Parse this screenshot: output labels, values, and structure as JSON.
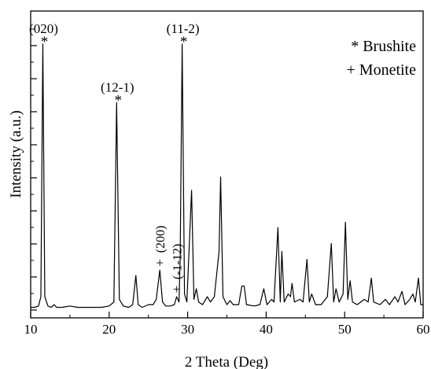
{
  "chart_data": {
    "type": "line",
    "xlabel": "2 Theta (Deg)",
    "ylabel": "Intensity (a.u.)",
    "xlim": [
      10,
      60
    ],
    "xticks": [
      "10",
      "20",
      "30",
      "40",
      "50",
      "60"
    ],
    "legend": {
      "placement": "top-right",
      "entries": [
        {
          "marker": "*",
          "label": "* Brushite"
        },
        {
          "marker": "+",
          "label": "+ Monetite"
        }
      ]
    },
    "series": [
      {
        "points": [
          [
            10.0,
            0.01
          ],
          [
            10.5,
            0.01
          ],
          [
            11.0,
            0.015
          ],
          [
            11.3,
            0.05
          ],
          [
            11.55,
            1.0
          ],
          [
            11.8,
            0.05
          ],
          [
            12.2,
            0.015
          ],
          [
            12.6,
            0.01
          ],
          [
            13.0,
            0.02
          ],
          [
            13.3,
            0.01
          ],
          [
            14.0,
            0.01
          ],
          [
            15.0,
            0.015
          ],
          [
            16.0,
            0.01
          ],
          [
            17.0,
            0.01
          ],
          [
            18.0,
            0.01
          ],
          [
            19.0,
            0.01
          ],
          [
            20.0,
            0.015
          ],
          [
            20.6,
            0.03
          ],
          [
            20.95,
            0.78
          ],
          [
            21.3,
            0.04
          ],
          [
            21.8,
            0.015
          ],
          [
            22.5,
            0.01
          ],
          [
            23.0,
            0.02
          ],
          [
            23.4,
            0.13
          ],
          [
            23.7,
            0.02
          ],
          [
            24.2,
            0.01
          ],
          [
            25.0,
            0.02
          ],
          [
            25.6,
            0.02
          ],
          [
            26.0,
            0.04
          ],
          [
            26.45,
            0.15
          ],
          [
            26.8,
            0.03
          ],
          [
            27.2,
            0.015
          ],
          [
            27.8,
            0.015
          ],
          [
            28.3,
            0.02
          ],
          [
            28.6,
            0.05
          ],
          [
            28.9,
            0.03
          ],
          [
            29.05,
            0.2
          ],
          [
            29.3,
            1.0
          ],
          [
            29.6,
            0.06
          ],
          [
            29.9,
            0.03
          ],
          [
            30.5,
            0.45
          ],
          [
            30.8,
            0.04
          ],
          [
            31.1,
            0.08
          ],
          [
            31.4,
            0.03
          ],
          [
            31.9,
            0.02
          ],
          [
            32.5,
            0.05
          ],
          [
            32.9,
            0.03
          ],
          [
            33.4,
            0.05
          ],
          [
            34.0,
            0.22
          ],
          [
            34.2,
            0.5
          ],
          [
            34.5,
            0.05
          ],
          [
            35.0,
            0.02
          ],
          [
            35.4,
            0.035
          ],
          [
            35.8,
            0.02
          ],
          [
            36.5,
            0.02
          ],
          [
            36.9,
            0.09
          ],
          [
            37.2,
            0.09
          ],
          [
            37.5,
            0.02
          ],
          [
            38.5,
            0.015
          ],
          [
            39.2,
            0.02
          ],
          [
            39.7,
            0.08
          ],
          [
            40.1,
            0.02
          ],
          [
            40.7,
            0.04
          ],
          [
            41.0,
            0.03
          ],
          [
            41.5,
            0.31
          ],
          [
            41.8,
            0.03
          ],
          [
            42.0,
            0.22
          ],
          [
            42.3,
            0.03
          ],
          [
            42.8,
            0.06
          ],
          [
            43.1,
            0.05
          ],
          [
            43.3,
            0.1
          ],
          [
            43.6,
            0.03
          ],
          [
            44.3,
            0.04
          ],
          [
            44.7,
            0.03
          ],
          [
            45.2,
            0.19
          ],
          [
            45.5,
            0.03
          ],
          [
            45.8,
            0.06
          ],
          [
            46.3,
            0.02
          ],
          [
            47.0,
            0.02
          ],
          [
            47.8,
            0.05
          ],
          [
            48.3,
            0.25
          ],
          [
            48.6,
            0.03
          ],
          [
            48.9,
            0.08
          ],
          [
            49.3,
            0.03
          ],
          [
            49.8,
            0.06
          ],
          [
            50.1,
            0.33
          ],
          [
            50.4,
            0.04
          ],
          [
            50.7,
            0.11
          ],
          [
            51.0,
            0.03
          ],
          [
            51.6,
            0.02
          ],
          [
            52.5,
            0.04
          ],
          [
            53.0,
            0.03
          ],
          [
            53.4,
            0.12
          ],
          [
            53.7,
            0.03
          ],
          [
            54.5,
            0.02
          ],
          [
            55.2,
            0.04
          ],
          [
            55.7,
            0.02
          ],
          [
            56.4,
            0.05
          ],
          [
            56.8,
            0.03
          ],
          [
            57.3,
            0.07
          ],
          [
            57.7,
            0.02
          ],
          [
            58.3,
            0.04
          ],
          [
            58.7,
            0.06
          ],
          [
            59.0,
            0.03
          ],
          [
            59.4,
            0.12
          ],
          [
            59.7,
            0.02
          ],
          [
            60.0,
            0.02
          ]
        ]
      }
    ],
    "annotations": [
      {
        "label": "(020)",
        "marker": "*",
        "x": 11.55,
        "y": 1.0,
        "vertical": false
      },
      {
        "label": "(12-1)",
        "marker": "*",
        "x": 20.95,
        "y": 0.78,
        "vertical": false
      },
      {
        "label": "(11-2)",
        "marker": "*",
        "x": 29.3,
        "y": 1.0,
        "vertical": false
      },
      {
        "label": "(200)",
        "marker": "+",
        "x": 26.45,
        "y": 0.15,
        "vertical": true
      },
      {
        "label": "(-1-12)",
        "marker": "+",
        "x": 28.6,
        "y": 0.05,
        "vertical": true
      }
    ]
  }
}
